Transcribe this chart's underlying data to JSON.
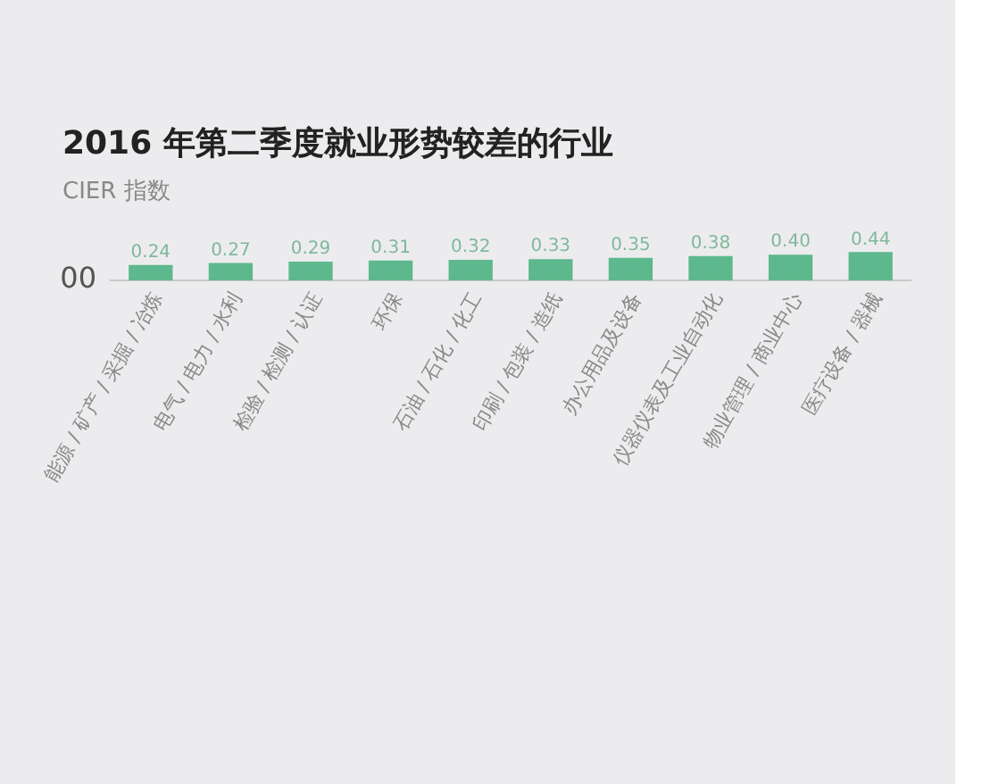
{
  "chart_data": {
    "type": "bar",
    "title": "2016 年第二季度就业形势较差的行业",
    "ylabel": "CIER 指数",
    "categories": [
      "能源 / 矿产 / 采掘 / 冶炼",
      "电气 / 电力 / 水利",
      "检验 / 检测 / 认证",
      "环保",
      "石油 / 石化 / 化工",
      "印刷 / 包装 / 造纸",
      "办公用品及设备",
      "仪器仪表及工业自动化",
      "物业管理 / 商业中心",
      "医疗设备 / 器械"
    ],
    "values": [
      0.24,
      0.27,
      0.29,
      0.31,
      0.32,
      0.33,
      0.35,
      0.38,
      0.4,
      0.44
    ],
    "color": "#5db88d",
    "value_labels": [
      "0.24",
      "0.27",
      "0.29",
      "0.31",
      "0.32",
      "0.33",
      "0.35",
      "0.38",
      "0.40",
      "0.44"
    ],
    "annotations": [
      "00"
    ],
    "grid": false,
    "legend": false
  }
}
